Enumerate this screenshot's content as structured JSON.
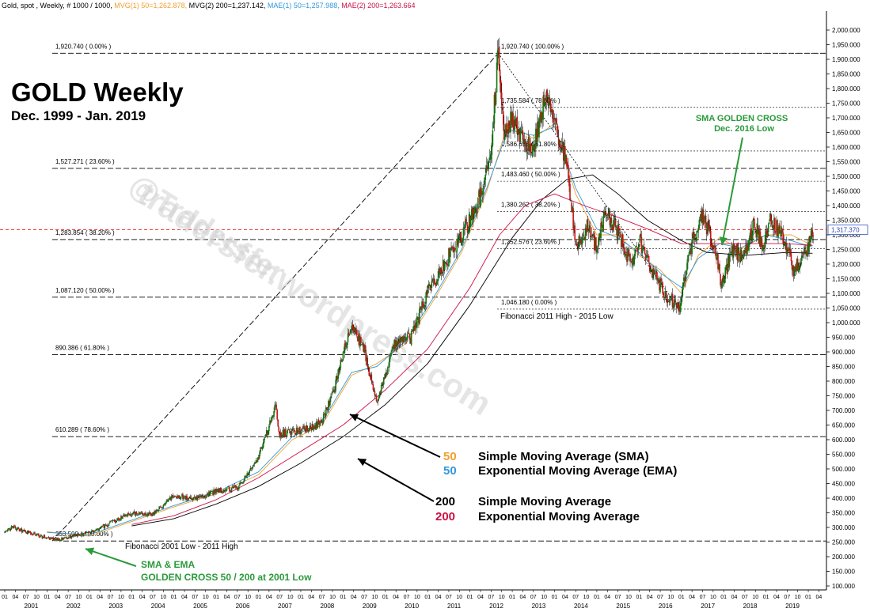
{
  "header": {
    "segments": [
      {
        "text": "Gold, spot , Weekly, # 1000 / 1000,",
        "color": "#000000"
      },
      {
        "text": "MVG(1) 50=1,262.878,",
        "color": "#f0a030"
      },
      {
        "text": "MVG(2) 200=1,237.142,",
        "color": "#000000"
      },
      {
        "text": "MAE(1) 50=1,257.988,",
        "color": "#3399dd"
      },
      {
        "text": "MAE(2) 200=1,263.664",
        "color": "#cc1144"
      }
    ]
  },
  "title": {
    "main": "GOLD Weekly",
    "sub": "Dec. 1999 - Jan. 2019"
  },
  "watermark": [
    "@Tradersfer",
    "tradersfer.wordpress.com"
  ],
  "colors": {
    "sma50": "#f0a030",
    "ema50": "#3399dd",
    "sma200": "#000000",
    "ema200": "#cc1144",
    "candle_up": "#0a7a0a",
    "candle_down": "#cc1111",
    "annotation_green": "#2a9a3a",
    "price_line": "#ee2222"
  },
  "chart_data": {
    "type": "candlestick",
    "title": "GOLD Weekly",
    "subtitle": "Dec. 1999 - Jan. 2019",
    "ylim": [
      100,
      2050
    ],
    "xlim": [
      2000.0,
      2019.28
    ],
    "y_ticks": [
      "2,000.000",
      "1,950.000",
      "1,900.000",
      "1,850.000",
      "1,800.000",
      "1,750.000",
      "1,700.000",
      "1,650.000",
      "1,600.000",
      "1,550.000",
      "1,500.000",
      "1,450.000",
      "1,400.000",
      "1,350.000",
      "1,300.000",
      "1,250.000",
      "1,200.000",
      "1,150.000",
      "1,100.000",
      "1,050.000",
      "1,000.000",
      "950.000",
      "900.000",
      "850.000",
      "800.000",
      "750.000",
      "700.000",
      "650.000",
      "600.000",
      "550.000",
      "500.000",
      "450.000",
      "400.000",
      "350.000",
      "300.000",
      "250.000",
      "200.000",
      "150.000",
      "100.000"
    ],
    "month_labels": [
      "01",
      "04",
      "07",
      "10"
    ],
    "year_labels": [
      "2001",
      "2002",
      "2003",
      "2004",
      "2005",
      "2006",
      "2007",
      "2008",
      "2009",
      "2010",
      "2011",
      "2012",
      "2013",
      "2014",
      "2015",
      "2016",
      "2017",
      "2018",
      "2019"
    ],
    "last_price": {
      "value": 1317.37,
      "label": "1,317.370"
    },
    "price_path": [
      [
        2000.0,
        283
      ],
      [
        2000.2,
        300
      ],
      [
        2000.5,
        285
      ],
      [
        2000.9,
        268
      ],
      [
        2001.3,
        258
      ],
      [
        2001.6,
        270
      ],
      [
        2002.0,
        280
      ],
      [
        2002.5,
        315
      ],
      [
        2003.0,
        350
      ],
      [
        2003.5,
        345
      ],
      [
        2004.0,
        410
      ],
      [
        2004.5,
        395
      ],
      [
        2005.0,
        425
      ],
      [
        2005.5,
        435
      ],
      [
        2006.0,
        540
      ],
      [
        2006.4,
        710
      ],
      [
        2006.5,
        620
      ],
      [
        2007.0,
        630
      ],
      [
        2007.5,
        660
      ],
      [
        2007.8,
        780
      ],
      [
        2008.2,
        1000
      ],
      [
        2008.5,
        900
      ],
      [
        2008.8,
        720
      ],
      [
        2009.2,
        920
      ],
      [
        2009.6,
        950
      ],
      [
        2010.0,
        1100
      ],
      [
        2010.5,
        1230
      ],
      [
        2011.0,
        1350
      ],
      [
        2011.3,
        1450
      ],
      [
        2011.5,
        1600
      ],
      [
        2011.67,
        1920
      ],
      [
        2011.8,
        1650
      ],
      [
        2012.0,
        1700
      ],
      [
        2012.3,
        1600
      ],
      [
        2012.5,
        1600
      ],
      [
        2012.8,
        1780
      ],
      [
        2013.0,
        1680
      ],
      [
        2013.3,
        1550
      ],
      [
        2013.5,
        1250
      ],
      [
        2013.8,
        1330
      ],
      [
        2014.0,
        1250
      ],
      [
        2014.2,
        1380
      ],
      [
        2014.5,
        1310
      ],
      [
        2014.8,
        1200
      ],
      [
        2015.0,
        1280
      ],
      [
        2015.3,
        1180
      ],
      [
        2015.6,
        1100
      ],
      [
        2015.95,
        1050
      ],
      [
        2016.2,
        1250
      ],
      [
        2016.5,
        1360
      ],
      [
        2016.8,
        1250
      ],
      [
        2016.95,
        1130
      ],
      [
        2017.2,
        1250
      ],
      [
        2017.5,
        1220
      ],
      [
        2017.7,
        1340
      ],
      [
        2017.95,
        1260
      ],
      [
        2018.1,
        1355
      ],
      [
        2018.4,
        1300
      ],
      [
        2018.65,
        1180
      ],
      [
        2018.9,
        1230
      ],
      [
        2019.05,
        1290
      ],
      [
        2019.12,
        1317
      ]
    ],
    "series": [
      {
        "name": "Simple Moving Average (SMA)",
        "period": 50,
        "points": [
          [
            2001.0,
            285
          ],
          [
            2002.0,
            270
          ],
          [
            2003.0,
            320
          ],
          [
            2004.0,
            370
          ],
          [
            2005.0,
            415
          ],
          [
            2006.0,
            480
          ],
          [
            2006.8,
            600
          ],
          [
            2007.5,
            650
          ],
          [
            2008.2,
            820
          ],
          [
            2008.8,
            860
          ],
          [
            2009.5,
            930
          ],
          [
            2010.2,
            1090
          ],
          [
            2010.8,
            1240
          ],
          [
            2011.4,
            1450
          ],
          [
            2011.9,
            1680
          ],
          [
            2012.5,
            1630
          ],
          [
            2013.0,
            1680
          ],
          [
            2013.5,
            1440
          ],
          [
            2014.0,
            1300
          ],
          [
            2014.5,
            1300
          ],
          [
            2015.0,
            1230
          ],
          [
            2015.5,
            1180
          ],
          [
            2016.0,
            1100
          ],
          [
            2016.4,
            1230
          ],
          [
            2016.9,
            1290
          ],
          [
            2017.4,
            1250
          ],
          [
            2018.0,
            1300
          ],
          [
            2018.6,
            1300
          ],
          [
            2019.1,
            1263
          ]
        ]
      },
      {
        "name": "Exponential Moving Average (EMA)",
        "period": 50,
        "points": [
          [
            2001.0,
            283
          ],
          [
            2002.0,
            275
          ],
          [
            2003.0,
            325
          ],
          [
            2004.0,
            375
          ],
          [
            2005.0,
            420
          ],
          [
            2006.0,
            490
          ],
          [
            2006.8,
            610
          ],
          [
            2007.5,
            660
          ],
          [
            2008.2,
            830
          ],
          [
            2008.8,
            850
          ],
          [
            2009.5,
            940
          ],
          [
            2010.2,
            1100
          ],
          [
            2010.8,
            1250
          ],
          [
            2011.4,
            1460
          ],
          [
            2011.9,
            1660
          ],
          [
            2012.5,
            1640
          ],
          [
            2013.0,
            1670
          ],
          [
            2013.5,
            1460
          ],
          [
            2014.0,
            1320
          ],
          [
            2014.5,
            1290
          ],
          [
            2015.0,
            1240
          ],
          [
            2015.5,
            1170
          ],
          [
            2016.0,
            1120
          ],
          [
            2016.4,
            1220
          ],
          [
            2016.9,
            1270
          ],
          [
            2017.4,
            1255
          ],
          [
            2018.0,
            1300
          ],
          [
            2018.6,
            1280
          ],
          [
            2019.1,
            1258
          ]
        ]
      },
      {
        "name": "Simple Moving Average",
        "period": 200,
        "points": [
          [
            2003.0,
            305
          ],
          [
            2004.0,
            330
          ],
          [
            2005.0,
            380
          ],
          [
            2006.0,
            440
          ],
          [
            2007.0,
            520
          ],
          [
            2008.0,
            610
          ],
          [
            2009.0,
            720
          ],
          [
            2010.0,
            860
          ],
          [
            2011.0,
            1060
          ],
          [
            2012.0,
            1290
          ],
          [
            2012.7,
            1420
          ],
          [
            2013.3,
            1490
          ],
          [
            2013.9,
            1505
          ],
          [
            2014.5,
            1440
          ],
          [
            2015.2,
            1350
          ],
          [
            2016.0,
            1280
          ],
          [
            2016.6,
            1240
          ],
          [
            2017.5,
            1230
          ],
          [
            2018.5,
            1240
          ],
          [
            2019.1,
            1237
          ]
        ]
      },
      {
        "name": "Exponential Moving Average",
        "period": 200,
        "points": [
          [
            2003.0,
            310
          ],
          [
            2004.0,
            340
          ],
          [
            2005.0,
            395
          ],
          [
            2006.0,
            470
          ],
          [
            2007.0,
            560
          ],
          [
            2008.0,
            650
          ],
          [
            2009.0,
            770
          ],
          [
            2010.0,
            910
          ],
          [
            2011.0,
            1120
          ],
          [
            2011.7,
            1300
          ],
          [
            2012.3,
            1400
          ],
          [
            2013.0,
            1440
          ],
          [
            2013.7,
            1400
          ],
          [
            2014.5,
            1360
          ],
          [
            2015.2,
            1320
          ],
          [
            2016.0,
            1270
          ],
          [
            2016.7,
            1270
          ],
          [
            2017.5,
            1270
          ],
          [
            2018.5,
            1270
          ],
          [
            2019.1,
            1264
          ]
        ]
      }
    ],
    "fib_retracement_2001_2011": {
      "caption": "Fibonacci 2001 Low - 2011 High",
      "levels": [
        {
          "value": 1920.74,
          "label": "1,920.740 ( 0.00% )"
        },
        {
          "value": 1527.271,
          "label": "1,527.271 ( 23.60% )"
        },
        {
          "value": 1283.854,
          "label": "1,283.854 ( 38.20% )"
        },
        {
          "value": 1087.12,
          "label": "1,087.120 ( 50.00% )"
        },
        {
          "value": 890.386,
          "label": "890.386 ( 61.80% )"
        },
        {
          "value": 610.289,
          "label": "610.289 ( 78.60% )"
        },
        {
          "value": 253.5,
          "label": "253.500 ( 100.00% )"
        }
      ]
    },
    "fib_retracement_2011_2015": {
      "caption": "Fibonacci 2011 High - 2015 Low",
      "levels": [
        {
          "value": 1920.74,
          "label": "1,920.740 ( 100.00% )"
        },
        {
          "value": 1735.584,
          "label": "1,735.584 ( 78.60% )"
        },
        {
          "value": 1586.655,
          "label": "1,586.655 ( 61.80% )"
        },
        {
          "value": 1483.46,
          "label": "1,483.460 ( 50.00% )"
        },
        {
          "value": 1380.262,
          "label": "1,380.262 ( 38.20% )"
        },
        {
          "value": 1252.576,
          "label": "1,252.576 ( 23.60% )"
        },
        {
          "value": 1046.18,
          "label": "1,046.180 ( 0.00% )"
        }
      ]
    },
    "legend": [
      {
        "period": "50",
        "label": "Simple Moving Average (SMA)",
        "color": "#f0a030"
      },
      {
        "period": "50",
        "label": "Exponential Moving Average (EMA)",
        "color": "#3399dd"
      },
      {
        "period": "200",
        "label": "Simple Moving Average",
        "color": "#000000"
      },
      {
        "period": "200",
        "label": "Exponential Moving Average",
        "color": "#cc1144"
      }
    ],
    "annotations": [
      {
        "text": [
          "SMA GOLDEN CROSS",
          "Dec. 2016 Low"
        ],
        "color": "#2a9a3a"
      },
      {
        "text": [
          "SMA & EMA",
          "GOLDEN CROSS 50 / 200 at 2001 Low"
        ],
        "color": "#2a9a3a"
      }
    ]
  }
}
